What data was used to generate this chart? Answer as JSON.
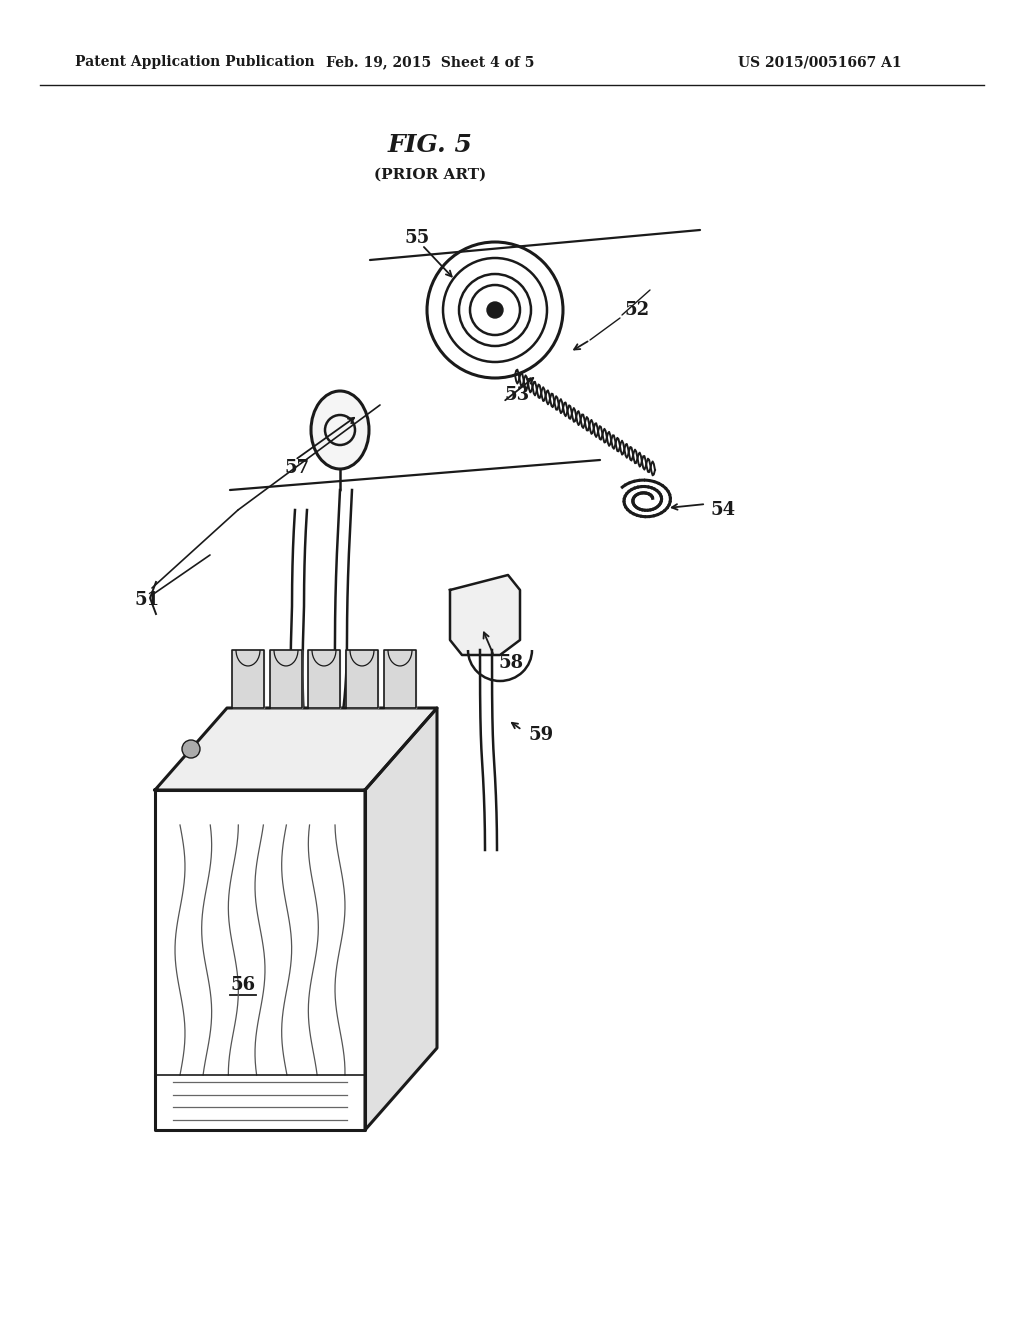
{
  "title": "FIG. 5",
  "subtitle": "(PRIOR ART)",
  "header_left": "Patent Application Publication",
  "header_center": "Feb. 19, 2015  Sheet 4 of 5",
  "header_right": "US 2015/0051667 A1",
  "background_color": "#ffffff",
  "line_color": "#1a1a1a"
}
